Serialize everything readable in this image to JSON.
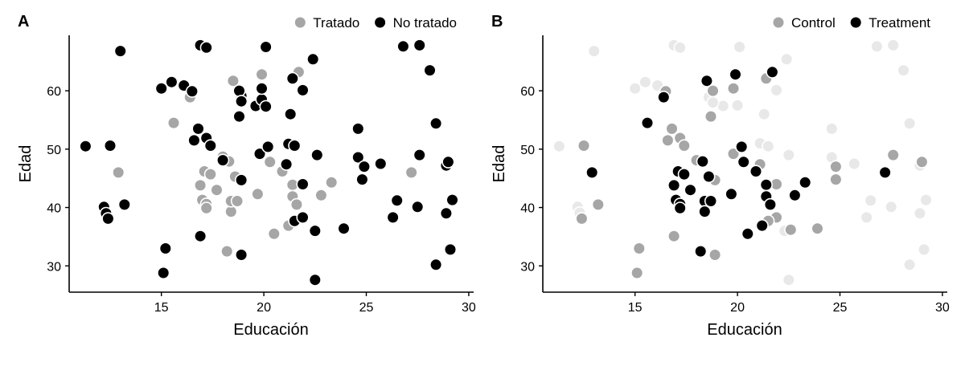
{
  "colors": {
    "treated": "#a6a6a6",
    "untreated": "#000000",
    "faded": "#e8e8e8",
    "point_border": "#ffffff",
    "axis": "#000000"
  },
  "chart_data": [
    {
      "type": "scatter",
      "panel_label": "A",
      "xlabel": "Educación",
      "ylabel": "Edad",
      "xlim": [
        10.5,
        30.2
      ],
      "ylim": [
        25.5,
        69.5
      ],
      "xticks": [
        15,
        20,
        25,
        30
      ],
      "yticks": [
        30,
        40,
        50,
        60
      ],
      "grid": false,
      "legend_position": "top-right",
      "legend": [
        {
          "label": "Tratado",
          "color": "#a6a6a6"
        },
        {
          "label": "No tratado",
          "color": "#000000"
        }
      ],
      "series": [
        {
          "name": "Tratado",
          "color": "#a6a6a6",
          "points": [
            [
              12.9,
              46.0
            ],
            [
              16.4,
              58.9
            ],
            [
              15.6,
              54.5
            ],
            [
              18.5,
              61.7
            ],
            [
              19.9,
              62.8
            ],
            [
              21.7,
              63.2
            ],
            [
              18.0,
              48.7
            ],
            [
              18.3,
              47.9
            ],
            [
              18.6,
              45.3
            ],
            [
              17.1,
              46.2
            ],
            [
              17.4,
              45.7
            ],
            [
              17.7,
              43.0
            ],
            [
              16.9,
              43.8
            ],
            [
              17.0,
              41.3
            ],
            [
              17.2,
              40.6
            ],
            [
              17.2,
              39.9
            ],
            [
              18.4,
              39.3
            ],
            [
              18.4,
              41.1
            ],
            [
              18.7,
              41.1
            ],
            [
              19.7,
              42.3
            ],
            [
              20.3,
              47.8
            ],
            [
              20.9,
              46.2
            ],
            [
              21.4,
              43.9
            ],
            [
              21.4,
              41.9
            ],
            [
              21.6,
              40.5
            ],
            [
              21.2,
              36.9
            ],
            [
              20.5,
              35.5
            ],
            [
              22.8,
              42.1
            ],
            [
              23.3,
              44.3
            ],
            [
              22.5,
              36.2
            ],
            [
              18.2,
              32.5
            ],
            [
              27.2,
              46.0
            ]
          ]
        },
        {
          "name": "No tratado",
          "color": "#000000",
          "points": [
            [
              11.3,
              50.5
            ],
            [
              12.5,
              50.6
            ],
            [
              13.0,
              66.8
            ],
            [
              12.2,
              40.1
            ],
            [
              12.3,
              39.0
            ],
            [
              12.4,
              38.1
            ],
            [
              13.2,
              40.5
            ],
            [
              15.0,
              60.4
            ],
            [
              15.5,
              61.5
            ],
            [
              16.1,
              60.9
            ],
            [
              16.5,
              59.9
            ],
            [
              16.9,
              67.8
            ],
            [
              17.2,
              67.4
            ],
            [
              20.1,
              67.5
            ],
            [
              22.4,
              65.4
            ],
            [
              18.9,
              59.1
            ],
            [
              18.8,
              60.0
            ],
            [
              18.9,
              58.2
            ],
            [
              18.8,
              55.6
            ],
            [
              19.6,
              57.4
            ],
            [
              19.9,
              58.5
            ],
            [
              20.1,
              57.3
            ],
            [
              19.9,
              60.4
            ],
            [
              21.4,
              62.1
            ],
            [
              21.9,
              60.1
            ],
            [
              21.3,
              56.0
            ],
            [
              16.8,
              53.5
            ],
            [
              17.2,
              51.9
            ],
            [
              16.6,
              51.5
            ],
            [
              17.4,
              50.6
            ],
            [
              18.0,
              48.1
            ],
            [
              18.9,
              44.7
            ],
            [
              19.8,
              49.2
            ],
            [
              20.2,
              50.4
            ],
            [
              21.2,
              50.9
            ],
            [
              21.5,
              50.6
            ],
            [
              21.1,
              47.4
            ],
            [
              21.9,
              44.0
            ],
            [
              21.5,
              37.7
            ],
            [
              21.9,
              38.3
            ],
            [
              22.6,
              49.0
            ],
            [
              22.5,
              36.0
            ],
            [
              23.9,
              36.4
            ],
            [
              24.6,
              53.5
            ],
            [
              24.6,
              48.6
            ],
            [
              24.9,
              47.0
            ],
            [
              24.8,
              44.8
            ],
            [
              25.7,
              47.5
            ],
            [
              26.8,
              67.6
            ],
            [
              27.6,
              67.8
            ],
            [
              28.1,
              63.5
            ],
            [
              28.4,
              54.4
            ],
            [
              27.6,
              49.0
            ],
            [
              27.5,
              40.1
            ],
            [
              26.5,
              41.2
            ],
            [
              26.3,
              38.3
            ],
            [
              28.9,
              47.2
            ],
            [
              29.0,
              47.8
            ],
            [
              28.9,
              39.0
            ],
            [
              29.2,
              41.3
            ],
            [
              29.1,
              32.8
            ],
            [
              28.4,
              30.2
            ],
            [
              22.5,
              27.6
            ],
            [
              15.2,
              33.0
            ],
            [
              15.1,
              28.8
            ],
            [
              16.9,
              35.1
            ],
            [
              18.9,
              31.9
            ]
          ]
        }
      ]
    },
    {
      "type": "scatter",
      "panel_label": "B",
      "xlabel": "Educación",
      "ylabel": "Edad",
      "xlim": [
        10.5,
        30.2
      ],
      "ylim": [
        25.5,
        69.5
      ],
      "xticks": [
        15,
        20,
        25,
        30
      ],
      "yticks": [
        30,
        40,
        50,
        60
      ],
      "grid": false,
      "legend_position": "top-right",
      "legend": [
        {
          "label": "Control",
          "color": "#a6a6a6"
        },
        {
          "label": "Treatment",
          "color": "#000000"
        }
      ],
      "series": [
        {
          "name": "",
          "color": "#e8e8e8",
          "points": [
            [
              11.3,
              50.5
            ],
            [
              13.0,
              66.8
            ],
            [
              15.0,
              60.4
            ],
            [
              15.5,
              61.5
            ],
            [
              16.1,
              60.9
            ],
            [
              16.9,
              67.8
            ],
            [
              17.2,
              67.4
            ],
            [
              20.1,
              67.5
            ],
            [
              22.4,
              65.4
            ],
            [
              18.6,
              58.9
            ],
            [
              19.3,
              57.4
            ],
            [
              20.0,
              57.5
            ],
            [
              18.8,
              58.0
            ],
            [
              21.3,
              56.0
            ],
            [
              21.9,
              60.1
            ],
            [
              21.1,
              51.0
            ],
            [
              21.5,
              50.5
            ],
            [
              22.5,
              49.0
            ],
            [
              22.3,
              36.0
            ],
            [
              24.6,
              53.5
            ],
            [
              24.6,
              48.6
            ],
            [
              25.7,
              47.5
            ],
            [
              26.8,
              67.6
            ],
            [
              27.6,
              67.8
            ],
            [
              28.1,
              63.5
            ],
            [
              28.4,
              54.4
            ],
            [
              28.9,
              47.2
            ],
            [
              26.5,
              41.2
            ],
            [
              26.3,
              38.3
            ],
            [
              27.5,
              40.1
            ],
            [
              28.9,
              39.0
            ],
            [
              29.2,
              41.3
            ],
            [
              29.1,
              32.8
            ],
            [
              28.4,
              30.2
            ],
            [
              22.5,
              27.6
            ],
            [
              12.2,
              40.1
            ],
            [
              12.3,
              39.1
            ]
          ]
        },
        {
          "name": "Control",
          "color": "#a6a6a6",
          "points": [
            [
              12.5,
              50.6
            ],
            [
              12.4,
              38.1
            ],
            [
              13.2,
              40.5
            ],
            [
              16.5,
              59.9
            ],
            [
              18.8,
              60.0
            ],
            [
              19.8,
              60.4
            ],
            [
              21.4,
              62.1
            ],
            [
              18.7,
              55.6
            ],
            [
              16.8,
              53.5
            ],
            [
              17.2,
              51.9
            ],
            [
              16.6,
              51.5
            ],
            [
              17.4,
              50.6
            ],
            [
              18.0,
              48.1
            ],
            [
              19.8,
              49.2
            ],
            [
              21.1,
              47.4
            ],
            [
              21.9,
              44.0
            ],
            [
              18.9,
              44.7
            ],
            [
              21.9,
              38.3
            ],
            [
              21.5,
              37.7
            ],
            [
              22.6,
              36.2
            ],
            [
              23.9,
              36.4
            ],
            [
              24.8,
              47.0
            ],
            [
              24.8,
              44.8
            ],
            [
              27.6,
              49.0
            ],
            [
              29.0,
              47.8
            ],
            [
              16.9,
              35.1
            ],
            [
              15.2,
              33.0
            ],
            [
              15.1,
              28.8
            ],
            [
              18.9,
              31.9
            ]
          ]
        },
        {
          "name": "Treatment",
          "color": "#000000",
          "points": [
            [
              12.9,
              46.0
            ],
            [
              15.6,
              54.5
            ],
            [
              16.4,
              58.9
            ],
            [
              18.5,
              61.7
            ],
            [
              19.9,
              62.8
            ],
            [
              21.7,
              63.2
            ],
            [
              18.3,
              47.9
            ],
            [
              20.2,
              50.4
            ],
            [
              20.3,
              47.8
            ],
            [
              20.9,
              46.2
            ],
            [
              17.1,
              46.2
            ],
            [
              17.4,
              45.7
            ],
            [
              18.6,
              45.3
            ],
            [
              17.7,
              43.0
            ],
            [
              16.9,
              43.8
            ],
            [
              17.0,
              41.3
            ],
            [
              17.2,
              40.6
            ],
            [
              17.2,
              39.9
            ],
            [
              18.4,
              41.1
            ],
            [
              18.7,
              41.1
            ],
            [
              18.4,
              39.3
            ],
            [
              19.7,
              42.3
            ],
            [
              21.4,
              43.9
            ],
            [
              21.4,
              41.9
            ],
            [
              21.6,
              40.5
            ],
            [
              21.2,
              36.9
            ],
            [
              20.5,
              35.5
            ],
            [
              22.8,
              42.1
            ],
            [
              23.3,
              44.3
            ],
            [
              18.2,
              32.5
            ],
            [
              27.2,
              46.0
            ]
          ]
        }
      ]
    }
  ]
}
